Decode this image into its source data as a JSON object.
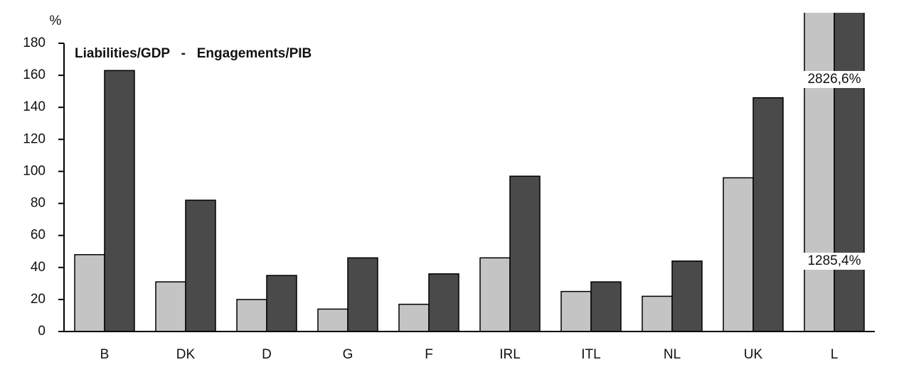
{
  "chart_data": {
    "type": "bar",
    "title": "Liabilities/GDP   -   Engagements/PIB",
    "y_label": "%",
    "categories": [
      "B",
      "DK",
      "D",
      "G",
      "F",
      "IRL",
      "ITL",
      "NL",
      "UK",
      "L"
    ],
    "series": [
      {
        "color": "#c4c4c4",
        "values": [
          48,
          31,
          20,
          14,
          17,
          46,
          25,
          22,
          96,
          1285.4
        ],
        "value_labels": [
          null,
          null,
          null,
          null,
          null,
          null,
          null,
          null,
          null,
          "1285,4%"
        ]
      },
      {
        "color": "#4a4a4a",
        "values": [
          163,
          82,
          35,
          46,
          36,
          97,
          31,
          44,
          146,
          2826.6
        ],
        "value_labels": [
          null,
          null,
          null,
          null,
          null,
          null,
          null,
          null,
          null,
          "2826,6%"
        ]
      }
    ],
    "ylim": [
      0,
      180
    ],
    "yticks": [
      0,
      20,
      40,
      60,
      80,
      100,
      120,
      140,
      160,
      180
    ],
    "grid": false
  }
}
